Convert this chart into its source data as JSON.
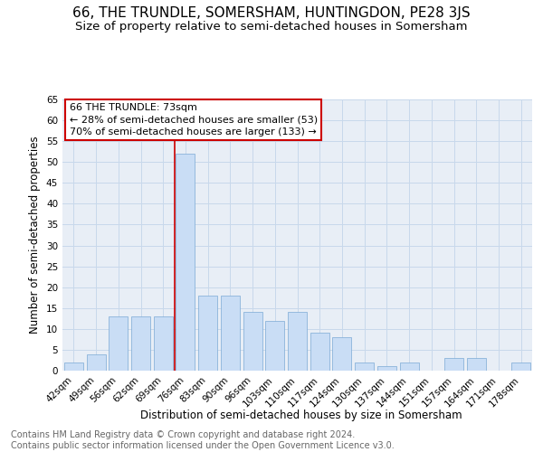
{
  "title": "66, THE TRUNDLE, SOMERSHAM, HUNTINGDON, PE28 3JS",
  "subtitle": "Size of property relative to semi-detached houses in Somersham",
  "xlabel": "Distribution of semi-detached houses by size in Somersham",
  "ylabel": "Number of semi-detached properties",
  "footer_line1": "Contains HM Land Registry data © Crown copyright and database right 2024.",
  "footer_line2": "Contains public sector information licensed under the Open Government Licence v3.0.",
  "categories": [
    "42sqm",
    "49sqm",
    "56sqm",
    "62sqm",
    "69sqm",
    "76sqm",
    "83sqm",
    "90sqm",
    "96sqm",
    "103sqm",
    "110sqm",
    "117sqm",
    "124sqm",
    "130sqm",
    "137sqm",
    "144sqm",
    "151sqm",
    "157sqm",
    "164sqm",
    "171sqm",
    "178sqm"
  ],
  "values": [
    2,
    4,
    13,
    13,
    13,
    52,
    18,
    18,
    14,
    12,
    14,
    9,
    8,
    2,
    1,
    2,
    0,
    3,
    3,
    0,
    2
  ],
  "bar_color": "#c9ddf5",
  "bar_edge_color": "#7baad4",
  "annotation_line1": "66 THE TRUNDLE: 73sqm",
  "annotation_line2": "← 28% of semi-detached houses are smaller (53)",
  "annotation_line3": "70% of semi-detached houses are larger (133) →",
  "annotation_box_color": "#ffffff",
  "annotation_box_edge_color": "#cc0000",
  "vline_x_index": 4.5,
  "vline_color": "#cc0000",
  "ylim": [
    0,
    65
  ],
  "yticks": [
    0,
    5,
    10,
    15,
    20,
    25,
    30,
    35,
    40,
    45,
    50,
    55,
    60,
    65
  ],
  "grid_color": "#c8d8eb",
  "title_fontsize": 11,
  "subtitle_fontsize": 9.5,
  "xlabel_fontsize": 8.5,
  "ylabel_fontsize": 8.5,
  "tick_fontsize": 7.5,
  "annotation_fontsize": 8,
  "footer_fontsize": 7,
  "background_color": "#e8eef6"
}
